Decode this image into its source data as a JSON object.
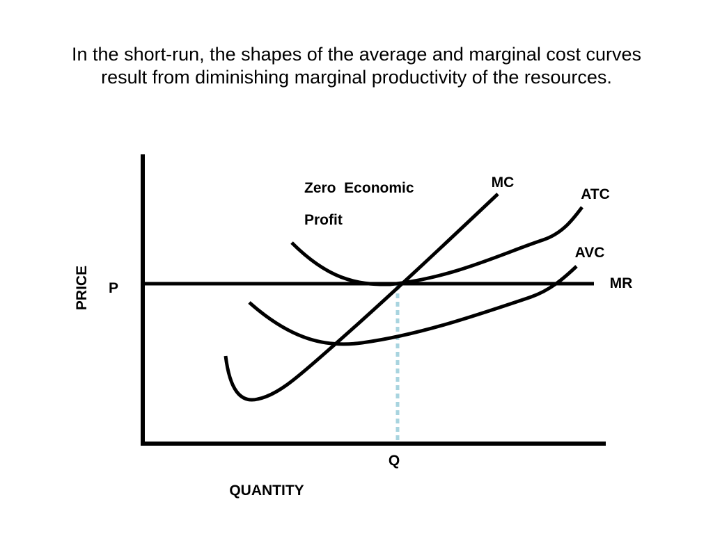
{
  "title": {
    "line1": "In the short-run, the shapes of the average and marginal cost curves",
    "line2": "result from diminishing marginal productivity of the resources."
  },
  "axes": {
    "y_label": "PRICE",
    "x_label": "QUANTITY",
    "price_tick": "P",
    "quantity_tick": "Q"
  },
  "annotation": {
    "line1": "Zero  Economic",
    "line2": "Profit"
  },
  "curves": {
    "mc": "MC",
    "atc": "ATC",
    "avc": "AVC",
    "mr": "MR"
  },
  "colors": {
    "curve": "#000000",
    "guide_line": "#a8d4df"
  }
}
